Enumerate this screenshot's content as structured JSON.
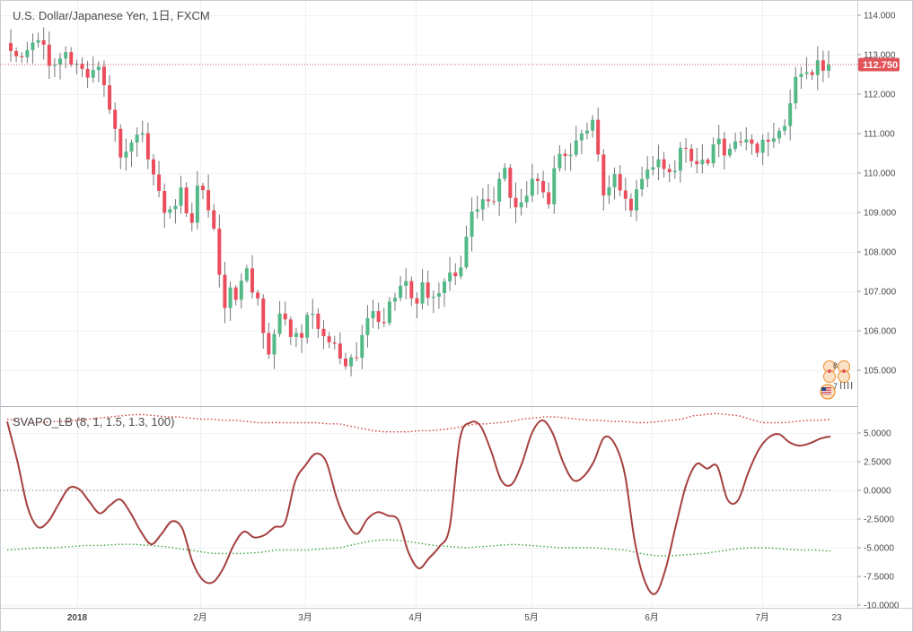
{
  "main_legend": "U.S. Dollar/Japanese Yen, 1日, FXCM",
  "indicator_legend": "SVAPO_LB (8, 1, 1.5, 1.3, 100)",
  "colors": {
    "up": "#53b987",
    "down": "#eb4d5c",
    "wick": "#777777",
    "svapo": "#a5403f",
    "upper_band": "#d23a3a",
    "lower_band": "#3aa33a",
    "zero_line": "#8a8a8a",
    "grid": "#eef1f5",
    "last_price": "#e1545a"
  },
  "event_badges": [
    "8",
    "7"
  ],
  "chart_data": [
    {
      "type": "candlestick",
      "symbol": "USDJPY",
      "title": "U.S. Dollar/Japanese Yen, 1日, FXCM",
      "y_ticks": [
        "114.000",
        "113.000",
        "112.000",
        "111.000",
        "110.000",
        "109.000",
        "108.000",
        "107.000",
        "106.000",
        "105.000"
      ],
      "y_range": [
        104.2,
        114.4
      ],
      "x_labels": [
        "2018",
        "2月",
        "3月",
        "4月",
        "5月",
        "6月",
        "7月",
        "23"
      ],
      "last_price": "112.750",
      "grid": true,
      "close_path": [
        112.9,
        112.7,
        113.3,
        113.2,
        112.6,
        113.0,
        112.6,
        112.1,
        113.0,
        111.2,
        110.4,
        111.0,
        110.9,
        109.6,
        108.8,
        109.6,
        108.7,
        109.9,
        108.7,
        106.8,
        106.9,
        107.4,
        106.8,
        105.6,
        106.3,
        105.9,
        106.0,
        106.4,
        105.8,
        105.5,
        104.9,
        105.4,
        106.6,
        106.1,
        106.9,
        107.5,
        106.7,
        107.1,
        106.9,
        107.4,
        107.6,
        108.8,
        109.4,
        109.2,
        110.0,
        109.3,
        109.4,
        110.0,
        109.4,
        110.5,
        110.3,
        111.0,
        111.2,
        109.4,
        109.8,
        109.1,
        109.5,
        110.2,
        110.2,
        109.8,
        110.8,
        110.4,
        110.3,
        110.8,
        110.6,
        111.0,
        110.5,
        110.9,
        110.6,
        111.3,
        112.3,
        112.5,
        112.7,
        112.75
      ]
    },
    {
      "type": "line",
      "title": "SVAPO_LB (8, 1, 1.5, 1.3, 100)",
      "y_ticks": [
        "5.0000",
        "2.5000",
        "0.0000",
        "-2.5000",
        "-5.0000",
        "-7.5000",
        "-10.0000"
      ],
      "y_range": [
        -10.0,
        7.0
      ],
      "svapo_path": [
        6.0,
        2.5,
        -1.5,
        -3.2,
        -2.7,
        -1.2,
        0.2,
        0.1,
        -1.0,
        -2.0,
        -1.3,
        -0.8,
        -2.0,
        -3.6,
        -4.7,
        -3.8,
        -2.7,
        -3.3,
        -6.2,
        -7.8,
        -8.0,
        -6.8,
        -4.8,
        -3.6,
        -4.1,
        -3.9,
        -3.2,
        -2.8,
        0.8,
        2.2,
        3.2,
        2.5,
        -0.6,
        -2.8,
        -3.8,
        -2.5,
        -1.9,
        -2.2,
        -2.6,
        -5.4,
        -6.8,
        -5.9,
        -4.9,
        -3.2,
        4.5,
        5.9,
        5.6,
        3.5,
        0.9,
        0.5,
        2.3,
        5.0,
        6.1,
        5.0,
        2.5,
        0.9,
        1.2,
        2.5,
        4.6,
        4.1,
        1.5,
        -4.5,
        -8.0,
        -9.0,
        -6.8,
        -3.0,
        0.5,
        2.3,
        1.9,
        2.1,
        -0.8,
        -0.9,
        1.5,
        3.5,
        4.6,
        4.9,
        4.2,
        3.9,
        4.1,
        4.5,
        4.7
      ],
      "upper_band_path": [
        6.2,
        6.1,
        5.9,
        5.9,
        6.0,
        6.0,
        6.1,
        6.2,
        6.3,
        6.4,
        6.5,
        6.6,
        6.6,
        6.5,
        6.4,
        6.4,
        6.3,
        6.2,
        6.2,
        6.1,
        6.1,
        6.0,
        5.9,
        5.9,
        5.9,
        5.9,
        5.9,
        5.9,
        5.8,
        5.8,
        5.6,
        5.4,
        5.2,
        5.1,
        5.1,
        5.1,
        5.2,
        5.2,
        5.3,
        5.4,
        5.6,
        5.8,
        5.8,
        5.9,
        6.0,
        6.2,
        6.3,
        6.4,
        6.4,
        6.3,
        6.2,
        6.1,
        6.1,
        6.0,
        6.0,
        5.9,
        5.9,
        6.0,
        6.1,
        6.2,
        6.5,
        6.6,
        6.7,
        6.6,
        6.5,
        6.2,
        5.9,
        5.9,
        5.9,
        6.0,
        6.1,
        6.1,
        6.2
      ],
      "lower_band_path": [
        -5.2,
        -5.1,
        -5.0,
        -5.0,
        -4.9,
        -4.8,
        -4.8,
        -4.7,
        -4.7,
        -4.8,
        -4.9,
        -5.1,
        -5.3,
        -5.5,
        -5.5,
        -5.5,
        -5.4,
        -5.2,
        -5.2,
        -5.2,
        -5.1,
        -5.0,
        -4.7,
        -4.4,
        -4.3,
        -4.4,
        -4.6,
        -4.8,
        -4.9,
        -5.0,
        -4.9,
        -4.8,
        -4.7,
        -4.8,
        -4.9,
        -5.0,
        -5.0,
        -5.0,
        -5.1,
        -5.2,
        -5.5,
        -5.7,
        -5.7,
        -5.6,
        -5.5,
        -5.3,
        -5.1,
        -5.0,
        -5.0,
        -5.1,
        -5.2,
        -5.2,
        -5.3
      ],
      "grid": true
    }
  ]
}
